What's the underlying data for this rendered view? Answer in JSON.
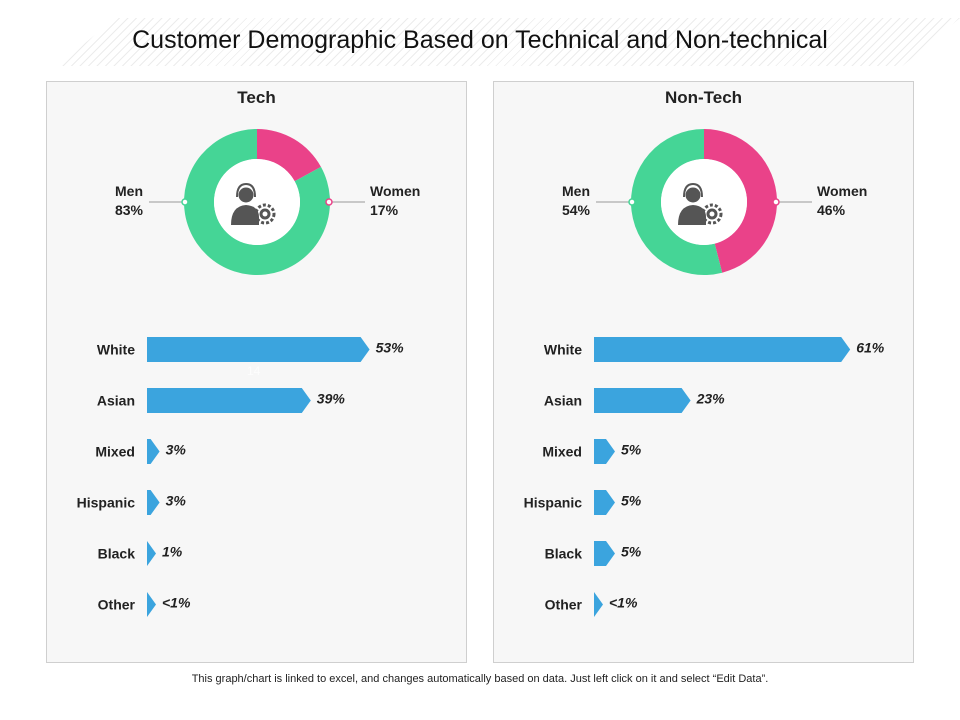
{
  "title": "Customer Demographic Based on Technical and Non-technical",
  "footnote": "This graph/chart is linked to excel, and changes automatically based on data. Just left click on it and select “Edit Data”.",
  "ghost_text": "14",
  "colors": {
    "men": "#45d596",
    "women": "#ea4289",
    "bar": "#3ba4de",
    "icon": "#555555"
  },
  "icons": {
    "center": "support-agent-gear-icon"
  },
  "chart_data": [
    {
      "type": "pie",
      "title": "Tech",
      "slices": [
        {
          "name": "Men",
          "value": 83,
          "label": "83%"
        },
        {
          "name": "Women",
          "value": 17,
          "label": "17%"
        }
      ],
      "bars": {
        "type": "bar",
        "categories": [
          "White",
          "Asian",
          "Mixed",
          "Hispanic",
          "Black",
          "Other"
        ],
        "values": [
          53,
          39,
          3,
          3,
          1,
          0.8
        ],
        "labels": [
          "53%",
          "39%",
          "3%",
          "3%",
          "1%",
          "<1%"
        ]
      }
    },
    {
      "type": "pie",
      "title": "Non-Tech",
      "slices": [
        {
          "name": "Men",
          "value": 54,
          "label": "54%"
        },
        {
          "name": "Women",
          "value": 46,
          "label": "46%"
        }
      ],
      "bars": {
        "type": "bar",
        "categories": [
          "White",
          "Asian",
          "Mixed",
          "Hispanic",
          "Black",
          "Other"
        ],
        "values": [
          61,
          23,
          5,
          5,
          5,
          0.8
        ],
        "labels": [
          "61%",
          "23%",
          "5%",
          "5%",
          "5%",
          "<1%"
        ]
      }
    }
  ]
}
